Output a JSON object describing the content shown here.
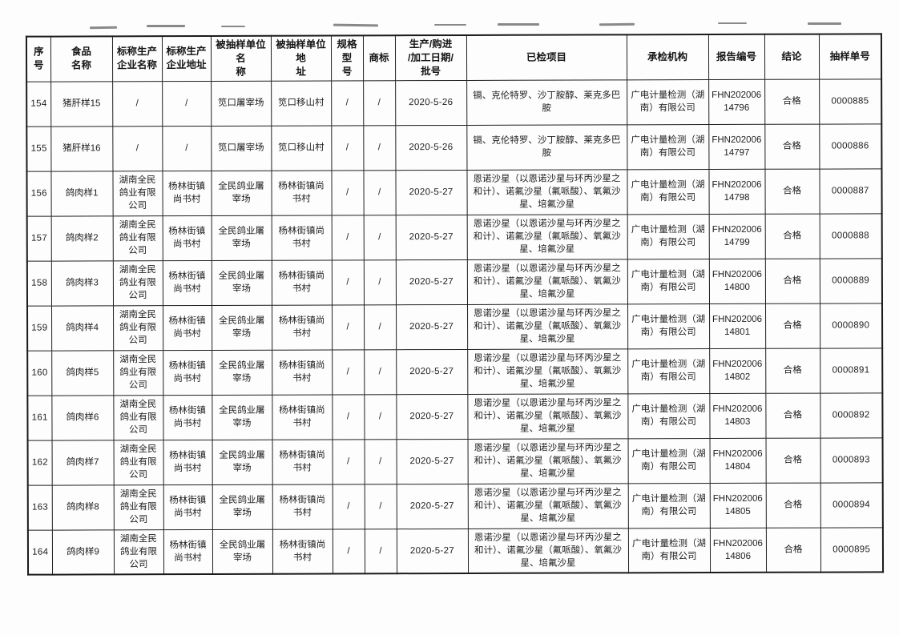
{
  "page": {
    "background": "#ffffff",
    "text_color": "#1b1b1b"
  },
  "table": {
    "columns": [
      {
        "key": "index",
        "label": "序号"
      },
      {
        "key": "food_name",
        "label": "食品\n名称"
      },
      {
        "key": "producer_name",
        "label": "标称生产\n企业名称"
      },
      {
        "key": "producer_address",
        "label": "标称生产\n企业地址"
      },
      {
        "key": "sampled_unit_name",
        "label": "被抽样单位名\n称"
      },
      {
        "key": "sampled_unit_address",
        "label": "被抽样单位地\n址"
      },
      {
        "key": "spec_model",
        "label": "规格型\n号"
      },
      {
        "key": "trademark",
        "label": "商标"
      },
      {
        "key": "production_date",
        "label": "生产/购进\n/加工日期/\n批号"
      },
      {
        "key": "tested_items",
        "label": "已检项目"
      },
      {
        "key": "testing_agency",
        "label": "承检机构"
      },
      {
        "key": "report_no",
        "label": "报告编号"
      },
      {
        "key": "conclusion",
        "label": "结论"
      },
      {
        "key": "sample_no",
        "label": "抽样单号"
      }
    ],
    "rows": [
      {
        "cells": [
          "154",
          "猪肝样15",
          "/",
          "/",
          "笕口屠宰场",
          "笕口移山村",
          "/",
          "/",
          "2020-5-26",
          "镉、克伦特罗、沙丁胺醇、莱克多巴胺",
          "广电计量检测（湖南）有限公司",
          "FHN20200614796",
          "合格",
          "0000885"
        ]
      },
      {
        "cells": [
          "155",
          "猪肝样16",
          "/",
          "/",
          "笕口屠宰场",
          "笕口移山村",
          "/",
          "/",
          "2020-5-26",
          "镉、克伦特罗、沙丁胺醇、莱克多巴胺",
          "广电计量检测（湖南）有限公司",
          "FHN20200614797",
          "合格",
          "0000886"
        ]
      },
      {
        "cells": [
          "156",
          "鸽肉样1",
          "湖南全民鸽业有限公司",
          "杨林街镇尚书村",
          "全民鸽业屠宰场",
          "杨林街镇尚书村",
          "/",
          "/",
          "2020-5-27",
          "恩诺沙星（以恩诺沙星与环丙沙星之和计）、诺氟沙星（氟哌酸）、氧氟沙星、培氟沙星",
          "广电计量检测（湖南）有限公司",
          "FHN20200614798",
          "合格",
          "0000887"
        ]
      },
      {
        "cells": [
          "157",
          "鸽肉样2",
          "湖南全民鸽业有限公司",
          "杨林街镇尚书村",
          "全民鸽业屠宰场",
          "杨林街镇尚书村",
          "/",
          "/",
          "2020-5-27",
          "恩诺沙星（以恩诺沙星与环丙沙星之和计）、诺氟沙星（氟哌酸）、氧氟沙星、培氟沙星",
          "广电计量检测（湖南）有限公司",
          "FHN20200614799",
          "合格",
          "0000888"
        ]
      },
      {
        "cells": [
          "158",
          "鸽肉样3",
          "湖南全民鸽业有限公司",
          "杨林街镇尚书村",
          "全民鸽业屠宰场",
          "杨林街镇尚书村",
          "/",
          "/",
          "2020-5-27",
          "恩诺沙星（以恩诺沙星与环丙沙星之和计）、诺氟沙星（氟哌酸）、氧氟沙星、培氟沙星",
          "广电计量检测（湖南）有限公司",
          "FHN20200614800",
          "合格",
          "0000889"
        ]
      },
      {
        "cells": [
          "159",
          "鸽肉样4",
          "湖南全民鸽业有限公司",
          "杨林街镇尚书村",
          "全民鸽业屠宰场",
          "杨林街镇尚书村",
          "/",
          "/",
          "2020-5-27",
          "恩诺沙星（以恩诺沙星与环丙沙星之和计）、诺氟沙星（氟哌酸）、氧氟沙星、培氟沙星",
          "广电计量检测（湖南）有限公司",
          "FHN20200614801",
          "合格",
          "0000890"
        ]
      },
      {
        "cells": [
          "160",
          "鸽肉样5",
          "湖南全民鸽业有限公司",
          "杨林街镇尚书村",
          "全民鸽业屠宰场",
          "杨林街镇尚书村",
          "/",
          "/",
          "2020-5-27",
          "恩诺沙星（以恩诺沙星与环丙沙星之和计）、诺氟沙星（氟哌酸）、氧氟沙星、培氟沙星",
          "广电计量检测（湖南）有限公司",
          "FHN20200614802",
          "合格",
          "0000891"
        ]
      },
      {
        "cells": [
          "161",
          "鸽肉样6",
          "湖南全民鸽业有限公司",
          "杨林街镇尚书村",
          "全民鸽业屠宰场",
          "杨林街镇尚书村",
          "/",
          "/",
          "2020-5-27",
          "恩诺沙星（以恩诺沙星与环丙沙星之和计）、诺氟沙星（氟哌酸）、氧氟沙星、培氟沙星",
          "广电计量检测（湖南）有限公司",
          "FHN20200614803",
          "合格",
          "0000892"
        ]
      },
      {
        "cells": [
          "162",
          "鸽肉样7",
          "湖南全民鸽业有限公司",
          "杨林街镇尚书村",
          "全民鸽业屠宰场",
          "杨林街镇尚书村",
          "/",
          "/",
          "2020-5-27",
          "恩诺沙星（以恩诺沙星与环丙沙星之和计）、诺氟沙星（氟哌酸）、氧氟沙星、培氟沙星",
          "广电计量检测（湖南）有限公司",
          "FHN20200614804",
          "合格",
          "0000893"
        ]
      },
      {
        "cells": [
          "163",
          "鸽肉样8",
          "湖南全民鸽业有限公司",
          "杨林街镇尚书村",
          "全民鸽业屠宰场",
          "杨林街镇尚书村",
          "/",
          "/",
          "2020-5-27",
          "恩诺沙星（以恩诺沙星与环丙沙星之和计）、诺氟沙星（氟哌酸）、氧氟沙星、培氟沙星",
          "广电计量检测（湖南）有限公司",
          "FHN20200614805",
          "合格",
          "0000894"
        ]
      },
      {
        "cells": [
          "164",
          "鸽肉样9",
          "湖南全民鸽业有限公司",
          "杨林街镇尚书村",
          "全民鸽业屠宰场",
          "杨林街镇尚书村",
          "/",
          "/",
          "2020-5-27",
          "恩诺沙星（以恩诺沙星与环丙沙星之和计）、诺氟沙星（氟哌酸）、氧氟沙星、培氟沙星",
          "广电计量检测（湖南）有限公司",
          "FHN20200614806",
          "合格",
          "0000895"
        ]
      }
    ]
  }
}
